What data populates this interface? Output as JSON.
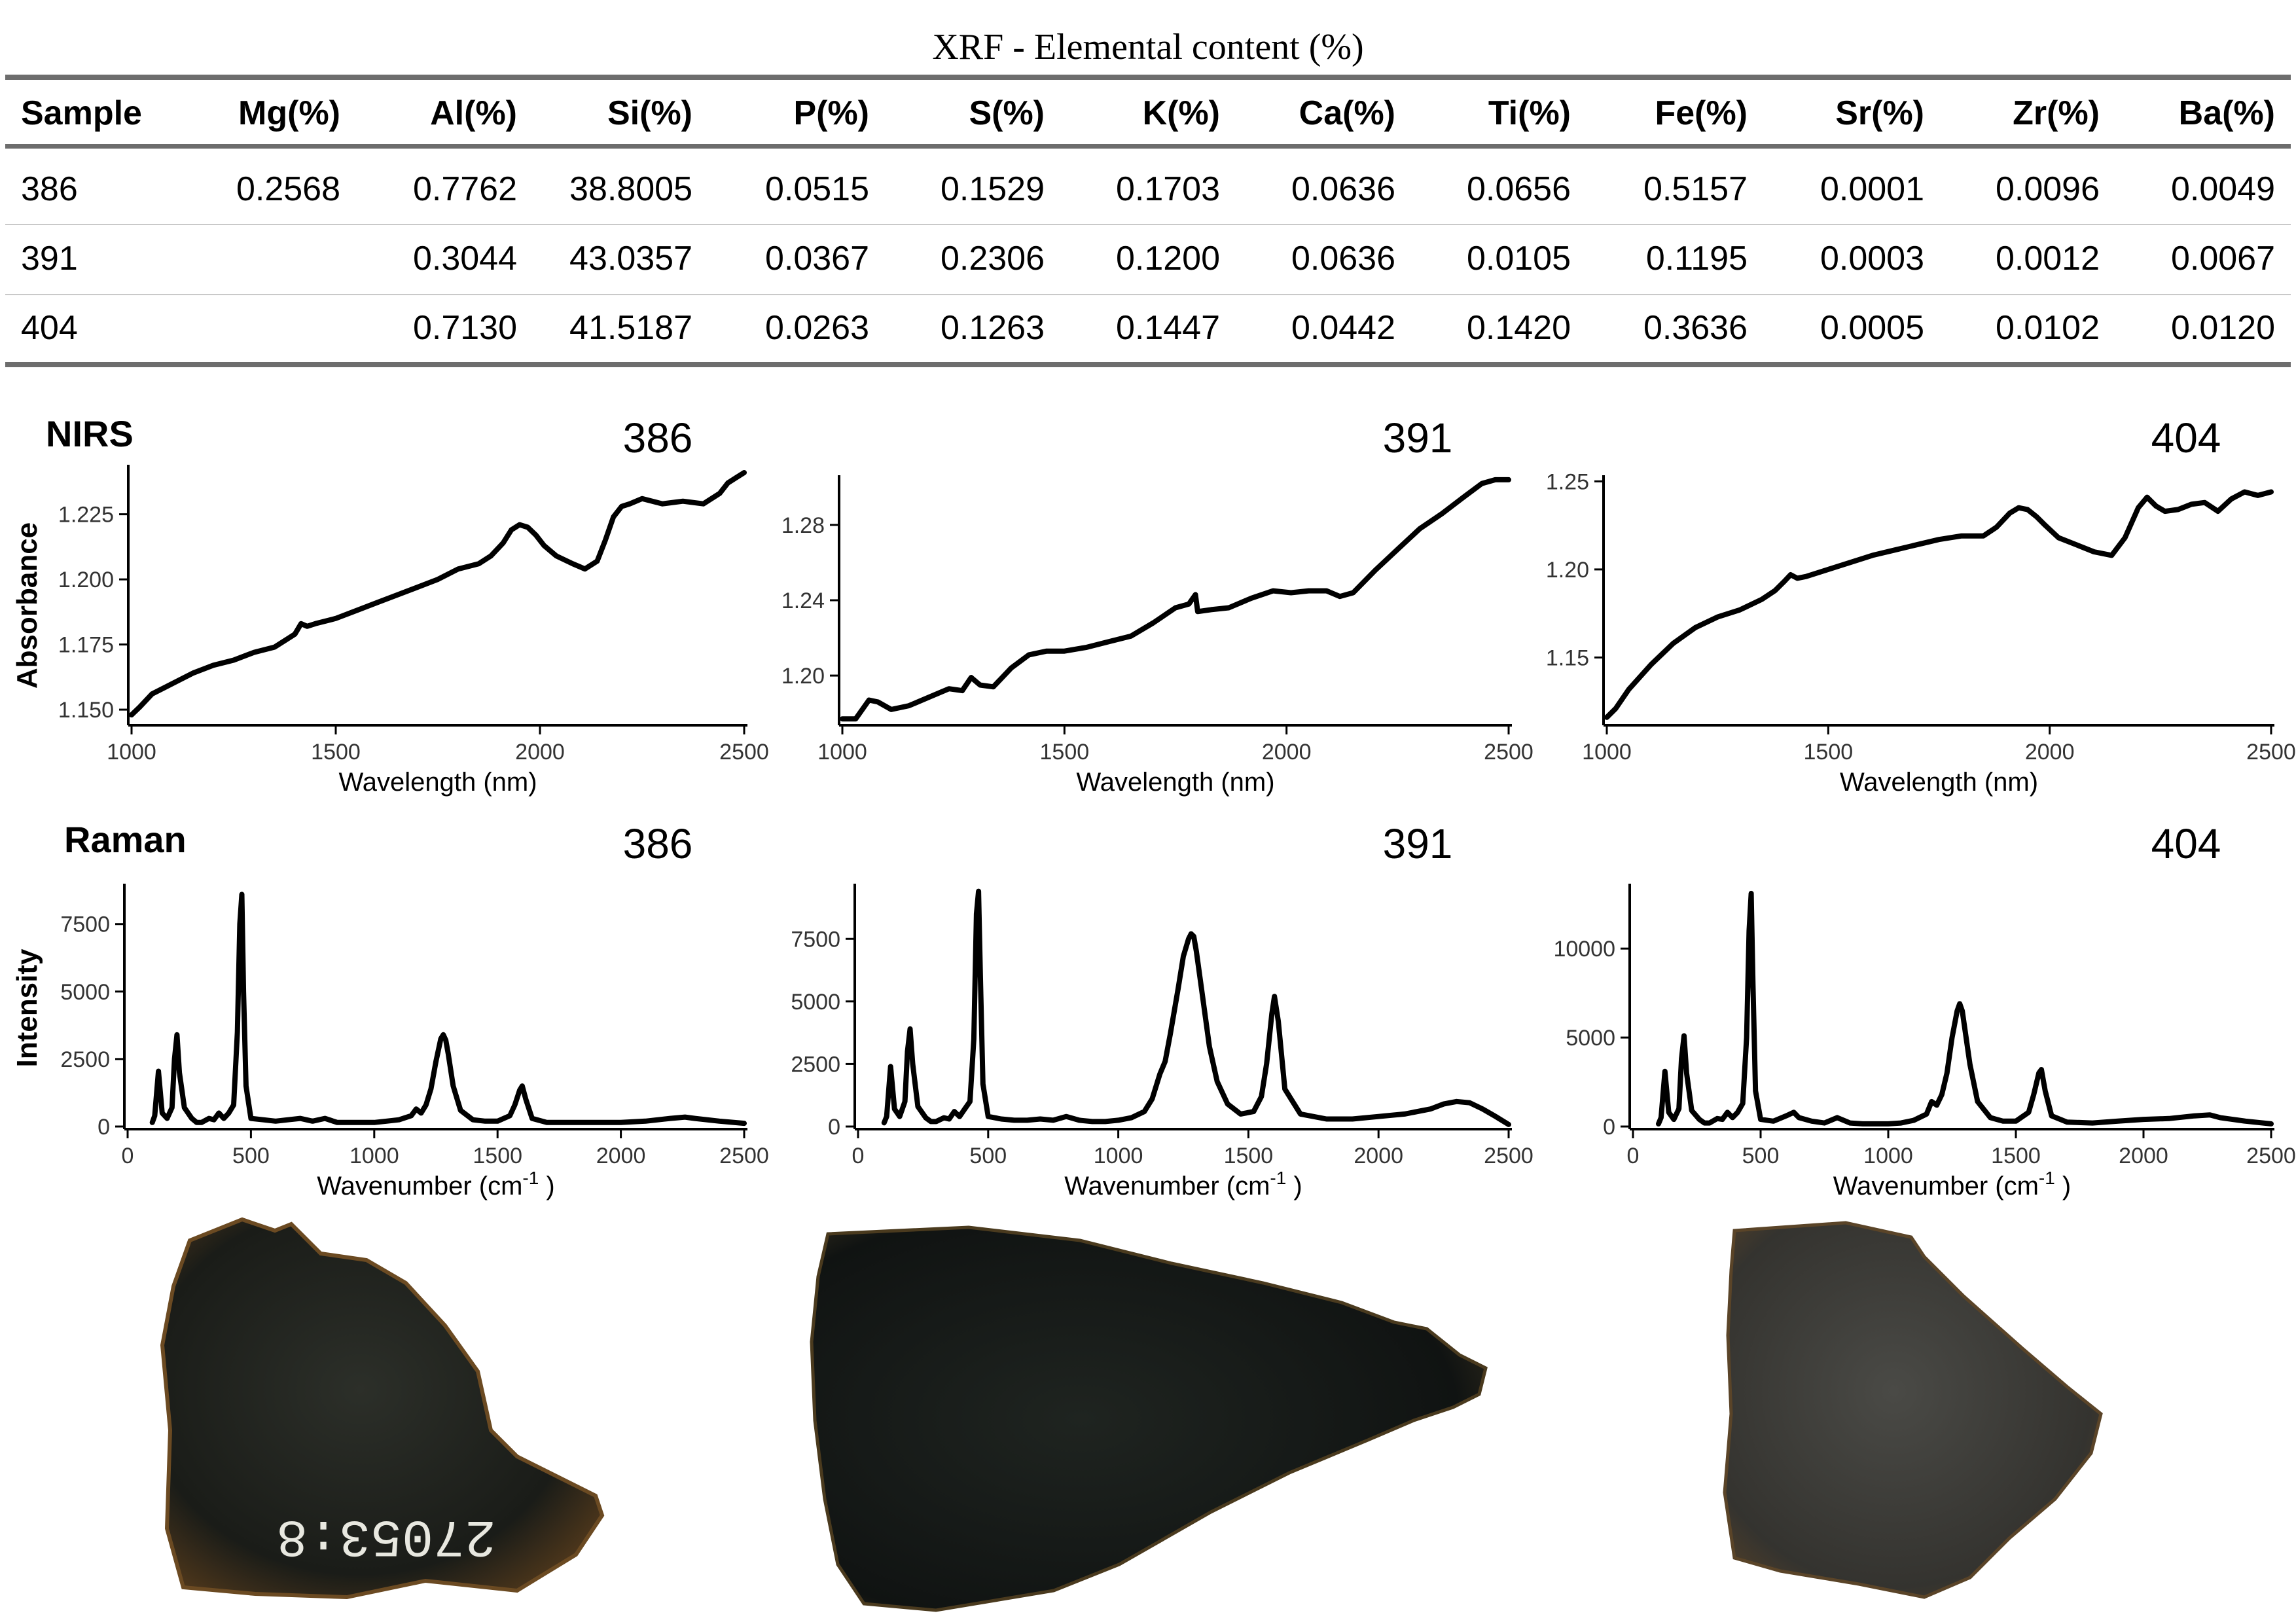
{
  "xrf": {
    "title": "XRF - Elemental content (%)",
    "headers": [
      "Sample",
      "Mg(%)",
      "Al(%)",
      "Si(%)",
      "P(%)",
      "S(%)",
      "K(%)",
      "Ca(%)",
      "Ti(%)",
      "Fe(%)",
      "Sr(%)",
      "Zr(%)",
      "Ba(%)"
    ],
    "rows": [
      [
        "386",
        "0.2568",
        "0.7762",
        "38.8005",
        "0.0515",
        "0.1529",
        "0.1703",
        "0.0636",
        "0.0656",
        "0.5157",
        "0.0001",
        "0.0096",
        "0.0049"
      ],
      [
        "391",
        "",
        "0.3044",
        "43.0357",
        "0.0367",
        "0.2306",
        "0.1200",
        "0.0636",
        "0.0105",
        "0.1195",
        "0.0003",
        "0.0012",
        "0.0067"
      ],
      [
        "404",
        "",
        "0.7130",
        "41.5187",
        "0.0263",
        "0.1263",
        "0.1447",
        "0.0442",
        "0.1420",
        "0.3636",
        "0.0005",
        "0.0102",
        "0.0120"
      ]
    ]
  },
  "nirs": {
    "label": "NIRS",
    "ylabel": "Absorbance"
  },
  "raman": {
    "label": "Raman",
    "ylabel": "Intensity"
  },
  "samples": [
    "386",
    "391",
    "404"
  ],
  "photos": {
    "386": {
      "label_text": "27053:8",
      "tone": "#1d1f1b"
    },
    "391": {
      "tone": "#141816"
    },
    "404": {
      "tone": "#3a3a36"
    }
  },
  "chart_data": [
    {
      "type": "line",
      "group": "NIRS",
      "title": "386",
      "xlabel": "Wavelength (nm)",
      "ylabel": "Absorbance",
      "xlim": [
        1000,
        2500
      ],
      "ylim": [
        1.145,
        1.243
      ],
      "xticks": [
        1000,
        1500,
        2000,
        2500
      ],
      "yticks": [
        1.15,
        1.175,
        1.2,
        1.225
      ],
      "ytick_labels": [
        "1.150",
        "1.175",
        "1.200",
        "1.225"
      ],
      "x": [
        1000,
        1020,
        1050,
        1100,
        1150,
        1200,
        1250,
        1300,
        1350,
        1380,
        1400,
        1415,
        1430,
        1450,
        1500,
        1550,
        1600,
        1650,
        1700,
        1750,
        1800,
        1850,
        1880,
        1910,
        1930,
        1950,
        1970,
        1990,
        2010,
        2040,
        2080,
        2110,
        2140,
        2160,
        2180,
        2200,
        2220,
        2250,
        2300,
        2350,
        2400,
        2440,
        2460,
        2480,
        2500
      ],
      "y": [
        1.148,
        1.151,
        1.156,
        1.16,
        1.164,
        1.167,
        1.169,
        1.172,
        1.174,
        1.177,
        1.179,
        1.183,
        1.182,
        1.183,
        1.185,
        1.188,
        1.191,
        1.194,
        1.197,
        1.2,
        1.204,
        1.206,
        1.209,
        1.214,
        1.219,
        1.221,
        1.22,
        1.217,
        1.213,
        1.209,
        1.206,
        1.204,
        1.207,
        1.215,
        1.224,
        1.228,
        1.229,
        1.231,
        1.229,
        1.23,
        1.229,
        1.233,
        1.237,
        1.239,
        1.241
      ]
    },
    {
      "type": "line",
      "group": "NIRS",
      "title": "391",
      "xlabel": "Wavelength (nm)",
      "ylabel": "",
      "xlim": [
        1000,
        2500
      ],
      "ylim": [
        1.175,
        1.305
      ],
      "xticks": [
        1000,
        1500,
        2000,
        2500
      ],
      "yticks": [
        1.2,
        1.24,
        1.28
      ],
      "ytick_labels": [
        "1.20",
        "1.24",
        "1.28"
      ],
      "x": [
        1000,
        1030,
        1060,
        1080,
        1110,
        1150,
        1200,
        1240,
        1270,
        1290,
        1310,
        1340,
        1380,
        1420,
        1460,
        1500,
        1550,
        1600,
        1650,
        1700,
        1750,
        1780,
        1795,
        1800,
        1830,
        1870,
        1920,
        1970,
        2010,
        2050,
        2090,
        2120,
        2150,
        2200,
        2250,
        2300,
        2350,
        2400,
        2440,
        2470,
        2500
      ],
      "y": [
        1.177,
        1.177,
        1.187,
        1.186,
        1.182,
        1.184,
        1.189,
        1.193,
        1.192,
        1.199,
        1.195,
        1.194,
        1.204,
        1.211,
        1.213,
        1.213,
        1.215,
        1.218,
        1.221,
        1.228,
        1.236,
        1.238,
        1.243,
        1.234,
        1.235,
        1.236,
        1.241,
        1.245,
        1.244,
        1.245,
        1.245,
        1.242,
        1.244,
        1.256,
        1.267,
        1.278,
        1.286,
        1.295,
        1.302,
        1.304,
        1.304
      ]
    },
    {
      "type": "line",
      "group": "NIRS",
      "title": "404",
      "xlabel": "Wavelength (nm)",
      "ylabel": "",
      "xlim": [
        1000,
        2500
      ],
      "ylim": [
        1.113,
        1.252
      ],
      "xticks": [
        1000,
        1500,
        2000,
        2500
      ],
      "yticks": [
        1.15,
        1.2,
        1.25
      ],
      "ytick_labels": [
        "1.15",
        "1.20",
        "1.25"
      ],
      "x": [
        1000,
        1020,
        1050,
        1100,
        1150,
        1200,
        1250,
        1300,
        1350,
        1380,
        1400,
        1415,
        1430,
        1450,
        1500,
        1550,
        1600,
        1650,
        1700,
        1750,
        1800,
        1850,
        1880,
        1910,
        1930,
        1950,
        1970,
        1990,
        2020,
        2060,
        2100,
        2140,
        2170,
        2200,
        2220,
        2240,
        2260,
        2290,
        2320,
        2350,
        2380,
        2410,
        2440,
        2470,
        2500
      ],
      "y": [
        1.116,
        1.121,
        1.132,
        1.146,
        1.158,
        1.167,
        1.173,
        1.177,
        1.183,
        1.188,
        1.193,
        1.197,
        1.195,
        1.196,
        1.2,
        1.204,
        1.208,
        1.211,
        1.214,
        1.217,
        1.219,
        1.219,
        1.224,
        1.232,
        1.235,
        1.234,
        1.23,
        1.225,
        1.218,
        1.214,
        1.21,
        1.208,
        1.218,
        1.235,
        1.241,
        1.236,
        1.233,
        1.234,
        1.237,
        1.238,
        1.233,
        1.24,
        1.244,
        1.242,
        1.244
      ]
    },
    {
      "type": "line",
      "group": "Raman",
      "title": "386",
      "xlabel": "Wavenumber (cm-1 )",
      "ylabel": "Intensity",
      "xlim": [
        0,
        2500
      ],
      "ylim": [
        0,
        8900
      ],
      "xticks": [
        0,
        500,
        1000,
        1500,
        2000,
        2500
      ],
      "yticks": [
        0,
        2500,
        5000,
        7500
      ],
      "ytick_labels": [
        "0",
        "2500",
        "5000",
        "7500"
      ],
      "x": [
        100,
        110,
        125,
        140,
        160,
        180,
        190,
        200,
        210,
        230,
        260,
        280,
        300,
        330,
        350,
        370,
        390,
        410,
        430,
        445,
        455,
        463,
        470,
        480,
        500,
        550,
        600,
        650,
        700,
        750,
        800,
        850,
        900,
        950,
        1000,
        1050,
        1100,
        1150,
        1170,
        1190,
        1210,
        1230,
        1250,
        1270,
        1280,
        1290,
        1300,
        1320,
        1350,
        1400,
        1450,
        1500,
        1550,
        1570,
        1590,
        1600,
        1615,
        1640,
        1700,
        1800,
        1900,
        2000,
        2100,
        2200,
        2260,
        2300,
        2400,
        2500
      ],
      "y": [
        150,
        400,
        2050,
        500,
        300,
        700,
        2500,
        3400,
        2000,
        700,
        300,
        150,
        150,
        300,
        250,
        500,
        300,
        500,
        800,
        3500,
        7500,
        8600,
        5000,
        1500,
        300,
        250,
        200,
        250,
        300,
        200,
        300,
        150,
        150,
        150,
        150,
        200,
        250,
        400,
        650,
        500,
        800,
        1400,
        2400,
        3250,
        3400,
        3200,
        2700,
        1500,
        600,
        250,
        200,
        200,
        400,
        800,
        1350,
        1500,
        1000,
        300,
        150,
        150,
        150,
        150,
        200,
        300,
        350,
        300,
        200,
        120
      ]
    },
    {
      "type": "line",
      "group": "Raman",
      "title": "391",
      "xlabel": "Wavenumber (cm-1 )",
      "ylabel": "",
      "xlim": [
        0,
        2500
      ],
      "ylim": [
        0,
        9600
      ],
      "xticks": [
        0,
        500,
        1000,
        1500,
        2000,
        2500
      ],
      "yticks": [
        0,
        2500,
        5000,
        7500
      ],
      "ytick_labels": [
        "0",
        "2500",
        "5000",
        "7500"
      ],
      "x": [
        100,
        110,
        125,
        140,
        160,
        180,
        190,
        200,
        210,
        230,
        260,
        280,
        300,
        330,
        350,
        370,
        390,
        410,
        430,
        445,
        455,
        463,
        470,
        480,
        500,
        550,
        600,
        650,
        700,
        750,
        800,
        850,
        900,
        950,
        1000,
        1050,
        1100,
        1130,
        1160,
        1180,
        1200,
        1230,
        1250,
        1270,
        1280,
        1290,
        1300,
        1320,
        1350,
        1380,
        1420,
        1470,
        1520,
        1550,
        1570,
        1590,
        1600,
        1615,
        1640,
        1700,
        1800,
        1900,
        2000,
        2100,
        2200,
        2250,
        2300,
        2350,
        2400,
        2450,
        2500
      ],
      "y": [
        150,
        400,
        2400,
        700,
        400,
        1000,
        3000,
        3900,
        2500,
        800,
        350,
        200,
        200,
        350,
        300,
        600,
        400,
        700,
        1000,
        3500,
        8500,
        9400,
        6000,
        1700,
        400,
        300,
        250,
        250,
        300,
        250,
        400,
        250,
        200,
        200,
        250,
        350,
        600,
        1100,
        2100,
        2600,
        3700,
        5500,
        6800,
        7500,
        7700,
        7600,
        7000,
        5500,
        3200,
        1800,
        900,
        500,
        600,
        1200,
        2500,
        4500,
        5200,
        4200,
        1500,
        500,
        300,
        300,
        400,
        500,
        700,
        900,
        1000,
        950,
        700,
        400,
        80
      ]
    },
    {
      "type": "line",
      "group": "Raman",
      "title": "404",
      "xlabel": "Wavenumber (cm-1 )",
      "ylabel": "",
      "xlim": [
        0,
        2500
      ],
      "ylim": [
        0,
        13500
      ],
      "xticks": [
        0,
        500,
        1000,
        1500,
        2000,
        2500
      ],
      "yticks": [
        0,
        5000,
        10000
      ],
      "ytick_labels": [
        "0",
        "5000",
        "10000"
      ],
      "x": [
        100,
        110,
        125,
        140,
        160,
        180,
        190,
        200,
        210,
        230,
        260,
        280,
        300,
        330,
        350,
        370,
        390,
        410,
        430,
        445,
        455,
        463,
        470,
        480,
        500,
        550,
        600,
        630,
        650,
        700,
        750,
        800,
        850,
        900,
        950,
        1000,
        1050,
        1100,
        1150,
        1170,
        1190,
        1210,
        1230,
        1250,
        1270,
        1280,
        1290,
        1300,
        1320,
        1350,
        1400,
        1450,
        1500,
        1550,
        1570,
        1590,
        1600,
        1615,
        1640,
        1700,
        1800,
        1900,
        2000,
        2100,
        2200,
        2260,
        2300,
        2400,
        2500
      ],
      "y": [
        150,
        500,
        3100,
        800,
        400,
        1000,
        3800,
        5100,
        3000,
        900,
        400,
        200,
        200,
        450,
        400,
        800,
        500,
        800,
        1300,
        5000,
        11000,
        13100,
        8000,
        2000,
        400,
        300,
        600,
        800,
        500,
        300,
        200,
        500,
        200,
        150,
        150,
        150,
        200,
        350,
        700,
        1400,
        1200,
        1800,
        3000,
        5000,
        6500,
        6900,
        6500,
        5500,
        3500,
        1400,
        500,
        300,
        300,
        800,
        1800,
        3000,
        3200,
        2000,
        600,
        250,
        200,
        300,
        400,
        450,
        600,
        650,
        500,
        300,
        150
      ]
    }
  ]
}
